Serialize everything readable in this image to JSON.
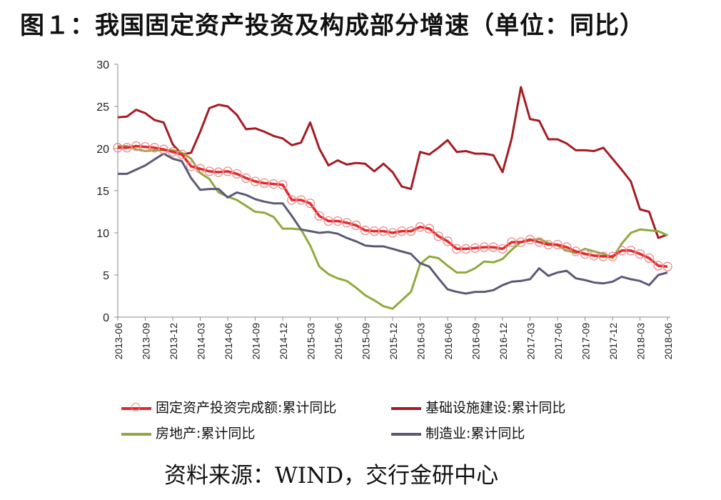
{
  "title": "图１：我国固定资产投资及构成部分增速（单位：同比）",
  "source": "资料来源：WIND，交行金研中心",
  "chart_data": {
    "type": "line",
    "ylim": [
      0,
      30
    ],
    "yticks": [
      0,
      5,
      10,
      15,
      20,
      25,
      30
    ],
    "grid": false,
    "legend_position": "bottom",
    "xlabels": [
      "2013-06",
      "2013-09",
      "2013-12",
      "2014-03",
      "2014-06",
      "2014-09",
      "2014-12",
      "2015-03",
      "2015-06",
      "2015-09",
      "2015-12",
      "2016-03",
      "2016-06",
      "2016-09",
      "2016-12",
      "2017-03",
      "2017-06",
      "2017-09",
      "2017-12",
      "2018-03",
      "2018-06"
    ],
    "x": [
      "2013-06",
      "2013-07",
      "2013-08",
      "2013-09",
      "2013-10",
      "2013-11",
      "2013-12",
      "2014-01",
      "2014-02",
      "2014-03",
      "2014-04",
      "2014-05",
      "2014-06",
      "2014-07",
      "2014-08",
      "2014-09",
      "2014-10",
      "2014-11",
      "2014-12",
      "2015-01",
      "2015-02",
      "2015-03",
      "2015-04",
      "2015-05",
      "2015-06",
      "2015-07",
      "2015-08",
      "2015-09",
      "2015-10",
      "2015-11",
      "2015-12",
      "2016-01",
      "2016-02",
      "2016-03",
      "2016-04",
      "2016-05",
      "2016-06",
      "2016-07",
      "2016-08",
      "2016-09",
      "2016-10",
      "2016-11",
      "2016-12",
      "2017-01",
      "2017-02",
      "2017-03",
      "2017-04",
      "2017-05",
      "2017-06",
      "2017-07",
      "2017-08",
      "2017-09",
      "2017-10",
      "2017-11",
      "2017-12",
      "2018-01",
      "2018-02",
      "2018-03",
      "2018-04",
      "2018-05",
      "2018-06"
    ],
    "series": [
      {
        "name": "固定资产投资完成额:累计同比",
        "color": "#e8262a",
        "marker": "circle",
        "values": [
          20.1,
          20.1,
          20.3,
          20.2,
          20.1,
          19.9,
          19.6,
          19.3,
          17.9,
          17.6,
          17.3,
          17.2,
          17.3,
          17.0,
          16.5,
          16.1,
          15.9,
          15.8,
          15.7,
          13.9,
          13.9,
          13.5,
          12.0,
          11.4,
          11.4,
          11.2,
          10.9,
          10.3,
          10.2,
          10.2,
          10.0,
          10.2,
          10.2,
          10.7,
          10.5,
          9.6,
          9.0,
          8.1,
          8.1,
          8.2,
          8.3,
          8.3,
          8.1,
          8.9,
          8.9,
          9.2,
          8.9,
          8.6,
          8.6,
          8.3,
          7.8,
          7.5,
          7.3,
          7.2,
          7.2,
          7.9,
          7.9,
          7.5,
          7.0,
          6.1,
          6.0
        ]
      },
      {
        "name": "基础设施建设:累计同比",
        "color": "#a51c22",
        "values": [
          23.7,
          23.8,
          24.6,
          24.2,
          23.4,
          23.1,
          20.5,
          19.3,
          19.5,
          22.0,
          24.8,
          25.2,
          25.0,
          24.0,
          22.3,
          22.4,
          22.0,
          21.5,
          21.2,
          20.4,
          20.7,
          23.1,
          20.0,
          18.0,
          18.6,
          18.1,
          18.3,
          18.2,
          17.3,
          18.2,
          17.2,
          15.5,
          15.2,
          19.6,
          19.3,
          20.1,
          21.0,
          19.6,
          19.7,
          19.4,
          19.4,
          19.2,
          17.2,
          21.2,
          27.3,
          23.5,
          23.3,
          21.1,
          21.1,
          20.6,
          19.8,
          19.8,
          19.7,
          20.1,
          18.8,
          17.5,
          16.1,
          12.8,
          12.5,
          9.4,
          9.8
        ]
      },
      {
        "name": "房地产:累计同比",
        "color": "#8faa3c",
        "values": [
          20.3,
          20.3,
          19.9,
          19.7,
          19.8,
          19.8,
          19.8,
          19.5,
          18.8,
          17.1,
          16.4,
          14.8,
          14.3,
          13.9,
          13.2,
          12.5,
          12.4,
          11.9,
          10.5,
          10.5,
          10.4,
          8.5,
          6.0,
          5.1,
          4.6,
          4.3,
          3.5,
          2.6,
          2.0,
          1.3,
          1.0,
          2.0,
          3.0,
          6.3,
          7.2,
          7.0,
          6.1,
          5.3,
          5.3,
          5.8,
          6.6,
          6.5,
          6.9,
          8.0,
          8.9,
          9.1,
          9.3,
          8.8,
          8.5,
          7.9,
          7.6,
          8.1,
          7.8,
          7.5,
          7.0,
          8.7,
          10.0,
          10.4,
          10.3,
          10.2,
          9.7
        ]
      },
      {
        "name": "制造业:累计同比",
        "color": "#5a5a78",
        "values": [
          17.0,
          17.0,
          17.5,
          18.0,
          18.7,
          19.4,
          18.8,
          18.5,
          16.5,
          15.1,
          15.2,
          15.2,
          14.2,
          14.8,
          14.5,
          14.0,
          13.7,
          13.5,
          13.5,
          12.0,
          10.4,
          10.2,
          10.0,
          10.1,
          9.9,
          9.4,
          9.0,
          8.5,
          8.4,
          8.4,
          8.1,
          7.8,
          7.5,
          6.4,
          6.0,
          4.6,
          3.3,
          3.0,
          2.8,
          3.0,
          3.0,
          3.2,
          3.8,
          4.2,
          4.3,
          4.5,
          5.8,
          4.9,
          5.3,
          5.5,
          4.6,
          4.4,
          4.1,
          4.0,
          4.2,
          4.8,
          4.5,
          4.3,
          3.8,
          5.0,
          5.3
        ]
      }
    ]
  }
}
